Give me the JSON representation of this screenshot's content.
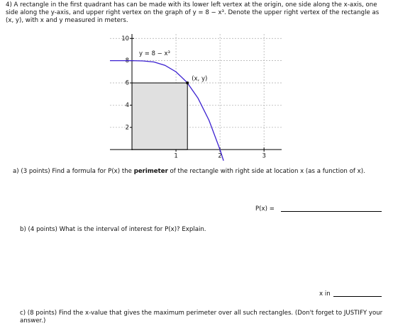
{
  "problem": {
    "text": "4) A rectangle in the first quadrant has can be made with its lower left vertex at the origin, one side along the x-axis, one side along the y-axis, and upper right vertex on the graph of y = 8 − x³. Denote the upper right vertex of the rectangle as (x, y), with x and y measured in meters."
  },
  "chart_data": {
    "type": "line",
    "curve_label": "y = 8 − x³",
    "point_label": "(x, y)",
    "x": [
      -0.5,
      0,
      0.25,
      0.5,
      0.75,
      1,
      1.25,
      1.5,
      1.75,
      2,
      2.08
    ],
    "series": [
      {
        "name": "y = 8 − x³",
        "color": "#3a1fd0",
        "values": [
          8,
          8,
          7.98,
          7.88,
          7.58,
          7,
          6.05,
          4.63,
          2.64,
          0,
          -1
        ]
      }
    ],
    "rectangle": {
      "x": 1.26,
      "y": 6,
      "color": "#e0e0e0"
    },
    "xlim": [
      -0.5,
      3.4
    ],
    "ylim": [
      -1.2,
      10.4
    ],
    "xticks": [
      1,
      2,
      3
    ],
    "yticks": [
      2,
      4,
      6,
      8,
      10
    ],
    "grid": true
  },
  "parts": {
    "a": {
      "segments": [
        "a) (3 points) Find a formula for P(x) the ",
        "perimeter",
        " of the rectangle with right side at location x (as a function of x)."
      ],
      "answer_label": "P(x) ="
    },
    "b": {
      "text": "b) (4 points) What is the interval of interest for P(x)? Explain.",
      "answer_label": "x in"
    },
    "c": {
      "text": "c) (8 points) Find the x-value that gives the maximum perimeter over all such rectangles. (Don't forget to JUSTIFY your answer.)"
    }
  }
}
